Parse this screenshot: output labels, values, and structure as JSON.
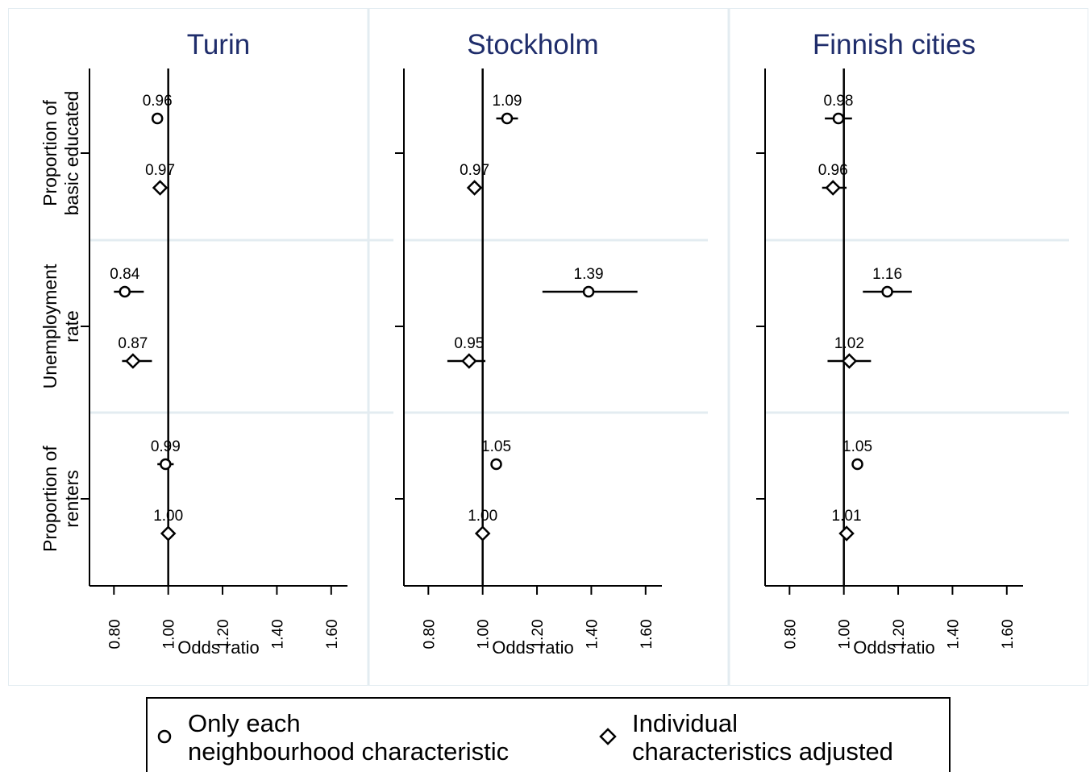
{
  "chart_data": {
    "type": "scatter",
    "xlabel": "Odds ratio",
    "x_ticks": [
      "0.80",
      "1.00",
      "1.20",
      "1.40",
      "1.60"
    ],
    "x_tick_values": [
      0.8,
      1.0,
      1.2,
      1.4,
      1.6
    ],
    "xlim": [
      0.71,
      1.66
    ],
    "reference_line": 1.0,
    "groups": [
      {
        "label_lines": [
          "Proportion of",
          "basic educated"
        ]
      },
      {
        "label_lines": [
          "Unemployment",
          "rate"
        ]
      },
      {
        "label_lines": [
          "Proportion of",
          "renters"
        ]
      }
    ],
    "series": [
      {
        "key": "only",
        "marker": "circle",
        "name_lines": [
          "Only each",
          "neighbourhood characteristic"
        ]
      },
      {
        "key": "adj",
        "marker": "diamond",
        "name_lines": [
          "Individual",
          "characteristics adjusted"
        ]
      }
    ],
    "panels": [
      {
        "title": "Turin",
        "points": [
          {
            "group": 0,
            "series": "only",
            "or": 0.96,
            "label": "0.96",
            "ci": [
              0.96,
              0.96
            ]
          },
          {
            "group": 0,
            "series": "adj",
            "or": 0.97,
            "label": "0.97",
            "ci": [
              0.97,
              0.97
            ]
          },
          {
            "group": 1,
            "series": "only",
            "or": 0.84,
            "label": "0.84",
            "ci": [
              0.8,
              0.91
            ]
          },
          {
            "group": 1,
            "series": "adj",
            "or": 0.87,
            "label": "0.87",
            "ci": [
              0.83,
              0.94
            ]
          },
          {
            "group": 2,
            "series": "only",
            "or": 0.99,
            "label": "0.99",
            "ci": [
              0.96,
              1.02
            ]
          },
          {
            "group": 2,
            "series": "adj",
            "or": 1.0,
            "label": "1.00",
            "ci": [
              1.0,
              1.0
            ]
          }
        ]
      },
      {
        "title": "Stockholm",
        "points": [
          {
            "group": 0,
            "series": "only",
            "or": 1.09,
            "label": "1.09",
            "ci": [
              1.05,
              1.13
            ]
          },
          {
            "group": 0,
            "series": "adj",
            "or": 0.97,
            "label": "0.97",
            "ci": [
              0.96,
              0.99
            ]
          },
          {
            "group": 1,
            "series": "only",
            "or": 1.39,
            "label": "1.39",
            "ci": [
              1.22,
              1.57
            ]
          },
          {
            "group": 1,
            "series": "adj",
            "or": 0.95,
            "label": "0.95",
            "ci": [
              0.87,
              1.01
            ]
          },
          {
            "group": 2,
            "series": "only",
            "or": 1.05,
            "label": "1.05",
            "ci": [
              1.05,
              1.05
            ]
          },
          {
            "group": 2,
            "series": "adj",
            "or": 1.0,
            "label": "1.00",
            "ci": [
              1.0,
              1.0
            ]
          }
        ]
      },
      {
        "title": "Finnish cities",
        "points": [
          {
            "group": 0,
            "series": "only",
            "or": 0.98,
            "label": "0.98",
            "ci": [
              0.93,
              1.03
            ]
          },
          {
            "group": 0,
            "series": "adj",
            "or": 0.96,
            "label": "0.96",
            "ci": [
              0.92,
              1.01
            ]
          },
          {
            "group": 1,
            "series": "only",
            "or": 1.16,
            "label": "1.16",
            "ci": [
              1.07,
              1.25
            ]
          },
          {
            "group": 1,
            "series": "adj",
            "or": 1.02,
            "label": "1.02",
            "ci": [
              0.94,
              1.1
            ]
          },
          {
            "group": 2,
            "series": "only",
            "or": 1.05,
            "label": "1.05",
            "ci": [
              1.05,
              1.05
            ]
          },
          {
            "group": 2,
            "series": "adj",
            "or": 1.01,
            "label": "1.01",
            "ci": [
              1.01,
              1.01
            ]
          }
        ]
      }
    ],
    "legend": {
      "position": "bottom"
    },
    "colors": {
      "title": "#1f2d6b",
      "separator": "#e3ecf1",
      "marks": "#000000"
    }
  }
}
